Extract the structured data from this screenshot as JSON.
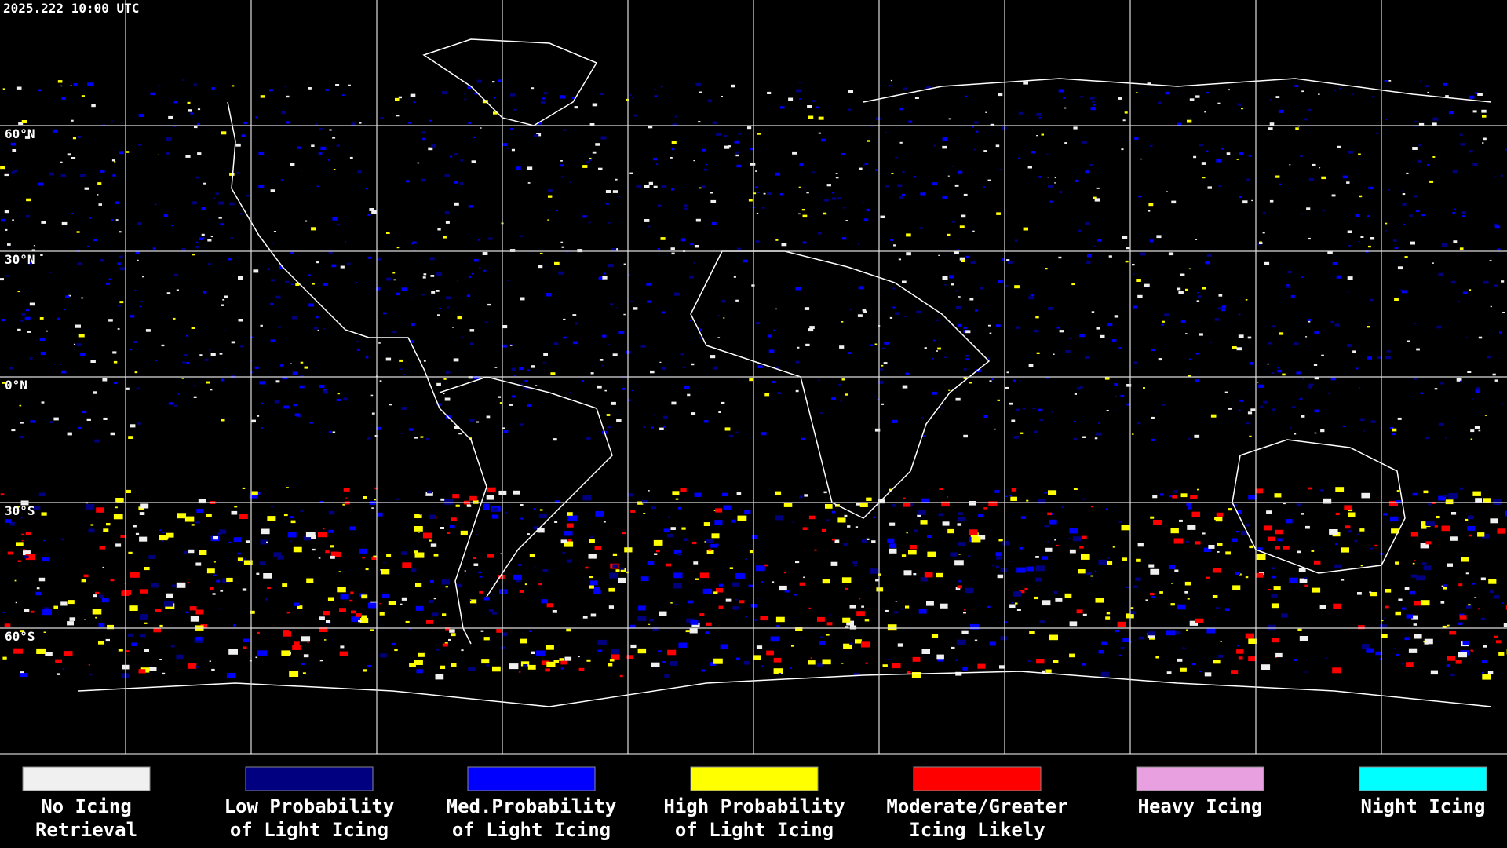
{
  "header": {
    "title": "2025.222 10:00 UTC"
  },
  "map": {
    "latitude_labels": [
      "60°N",
      "30°N",
      "0°N",
      "30°S",
      "60°S"
    ]
  },
  "legend": [
    {
      "label": [
        "No Icing",
        "Retrieval"
      ],
      "color": "#f0f0f0"
    },
    {
      "label": [
        "Low Probability",
        "of Light Icing"
      ],
      "color": "#000080"
    },
    {
      "label": [
        "Med.Probability",
        "of Light Icing"
      ],
      "color": "#0000ff"
    },
    {
      "label": [
        "High Probability",
        "of Light Icing"
      ],
      "color": "#ffff00"
    },
    {
      "label": [
        "Moderate/Greater",
        "Icing Likely"
      ],
      "color": "#ff0000"
    },
    {
      "label": [
        "Heavy Icing"
      ],
      "color": "#e8a0e0"
    },
    {
      "label": [
        "Night Icing"
      ],
      "color": "#00ffff"
    }
  ]
}
